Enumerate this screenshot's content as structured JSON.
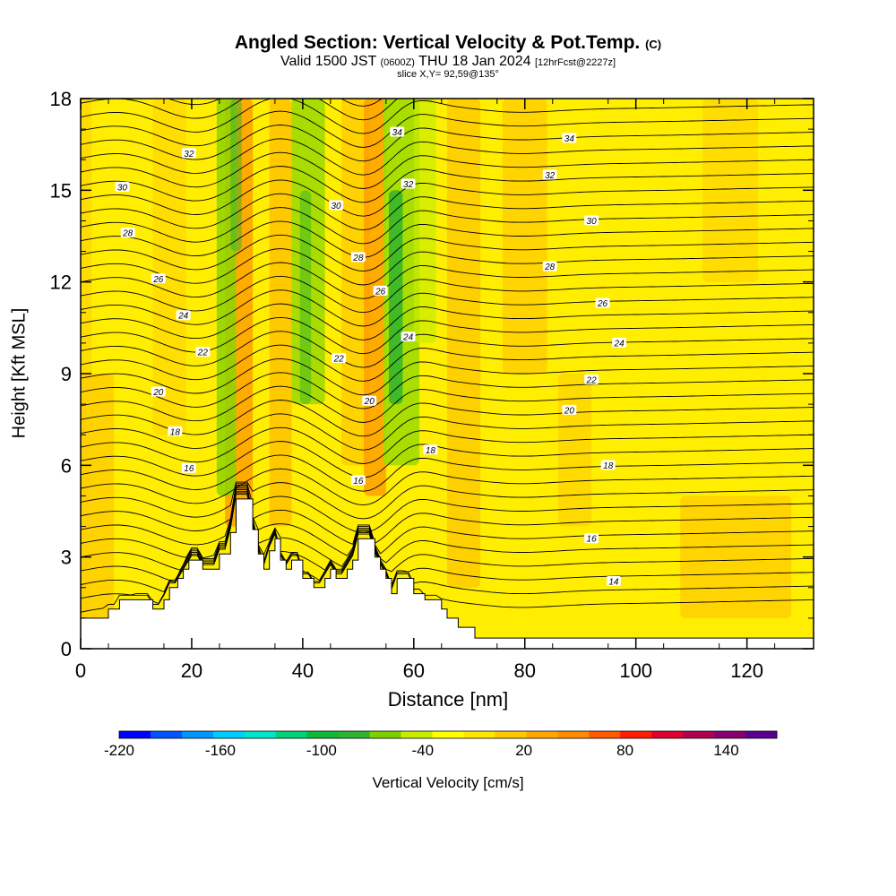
{
  "header": {
    "title_main": "Angled Section: Vertical Velocity & Pot.Temp.",
    "title_tag": "(C)",
    "subtitle_valid": "Valid 1500 JST",
    "subtitle_utc": "(0600Z)",
    "subtitle_date": "THU 18 Jan 2024",
    "subtitle_fcst": "[12hrFcst@2227z]",
    "slice": "slice X,Y= 92,59@135°"
  },
  "chart_data": {
    "type": "heatmap",
    "xlabel": "Distance [nm]",
    "ylabel": "Height [Kft MSL]",
    "xlim": [
      0,
      132
    ],
    "ylim": [
      0,
      18
    ],
    "x_ticks": [
      "0",
      "20",
      "40",
      "60",
      "80",
      "100",
      "120"
    ],
    "y_ticks": [
      "0",
      "3",
      "6",
      "9",
      "12",
      "15",
      "18"
    ],
    "colorbar": {
      "label": "Vertical Velocity [cm/s]",
      "range": [
        -220,
        170
      ],
      "step": 10,
      "tick_labels": [
        "-220",
        "-160",
        "-100",
        "-40",
        "20",
        "80",
        "140"
      ],
      "colors": [
        "#0000ff",
        "#0055ff",
        "#0096ff",
        "#00ccff",
        "#00e6c8",
        "#00d27a",
        "#10b83a",
        "#2eb42e",
        "#7ed000",
        "#c8ec00",
        "#ffff00",
        "#ffe600",
        "#ffc800",
        "#ffa800",
        "#ff8c00",
        "#ff5a00",
        "#ff1e00",
        "#e00030",
        "#b00050",
        "#880070",
        "#5a0090"
      ]
    },
    "contour_field": "Potential Temperature",
    "contour_levels": [
      14,
      16,
      18,
      20,
      22,
      24,
      26,
      28,
      30,
      32,
      34
    ],
    "contour_labels": [
      {
        "text": "34",
        "x": 57,
        "y": 16.9
      },
      {
        "text": "34",
        "x": 88,
        "y": 16.7
      },
      {
        "text": "32",
        "x": 19.5,
        "y": 16.2
      },
      {
        "text": "32",
        "x": 59,
        "y": 15.2
      },
      {
        "text": "32",
        "x": 84.5,
        "y": 15.5
      },
      {
        "text": "30",
        "x": 7.5,
        "y": 15.1
      },
      {
        "text": "30",
        "x": 46,
        "y": 14.5
      },
      {
        "text": "30",
        "x": 92,
        "y": 14.0
      },
      {
        "text": "28",
        "x": 8.5,
        "y": 13.6
      },
      {
        "text": "28",
        "x": 50,
        "y": 12.8
      },
      {
        "text": "28",
        "x": 84.5,
        "y": 12.5
      },
      {
        "text": "26",
        "x": 14,
        "y": 12.1
      },
      {
        "text": "26",
        "x": 54,
        "y": 11.7
      },
      {
        "text": "26",
        "x": 94,
        "y": 11.3
      },
      {
        "text": "24",
        "x": 18.5,
        "y": 10.9
      },
      {
        "text": "24",
        "x": 59,
        "y": 10.2
      },
      {
        "text": "24",
        "x": 97,
        "y": 10.0
      },
      {
        "text": "22",
        "x": 22,
        "y": 9.7
      },
      {
        "text": "22",
        "x": 46.5,
        "y": 9.5
      },
      {
        "text": "22",
        "x": 92,
        "y": 8.8
      },
      {
        "text": "20",
        "x": 14,
        "y": 8.4
      },
      {
        "text": "20",
        "x": 52,
        "y": 8.1
      },
      {
        "text": "20",
        "x": 88,
        "y": 7.8
      },
      {
        "text": "18",
        "x": 17,
        "y": 7.1
      },
      {
        "text": "18",
        "x": 63,
        "y": 6.5
      },
      {
        "text": "18",
        "x": 95,
        "y": 6.0
      },
      {
        "text": "16",
        "x": 19.5,
        "y": 5.9
      },
      {
        "text": "16",
        "x": 50,
        "y": 5.5
      },
      {
        "text": "16",
        "x": 92,
        "y": 3.6
      },
      {
        "text": "14",
        "x": 96,
        "y": 2.2
      }
    ],
    "terrain_profile": [
      [
        0,
        1.0
      ],
      [
        5,
        1.0
      ],
      [
        5,
        1.3
      ],
      [
        7,
        1.3
      ],
      [
        7,
        1.6
      ],
      [
        13,
        1.6
      ],
      [
        13,
        1.3
      ],
      [
        15,
        1.3
      ],
      [
        15,
        1.6
      ],
      [
        16,
        1.6
      ],
      [
        16,
        2.0
      ],
      [
        17.5,
        2.0
      ],
      [
        17.5,
        2.3
      ],
      [
        18.5,
        2.3
      ],
      [
        18.5,
        2.6
      ],
      [
        19.5,
        2.6
      ],
      [
        19.5,
        2.9
      ],
      [
        22,
        2.9
      ],
      [
        22,
        2.6
      ],
      [
        25,
        2.6
      ],
      [
        25,
        3.1
      ],
      [
        27,
        3.1
      ],
      [
        27,
        3.8
      ],
      [
        28,
        3.8
      ],
      [
        28,
        4.9
      ],
      [
        31,
        4.9
      ],
      [
        31,
        3.9
      ],
      [
        32,
        3.9
      ],
      [
        32,
        3.1
      ],
      [
        33,
        3.1
      ],
      [
        33,
        2.6
      ],
      [
        34,
        2.6
      ],
      [
        34,
        3.2
      ],
      [
        35,
        3.2
      ],
      [
        35,
        3.6
      ],
      [
        36,
        3.6
      ],
      [
        36,
        2.9
      ],
      [
        37,
        2.9
      ],
      [
        37,
        2.6
      ],
      [
        38,
        2.6
      ],
      [
        38,
        2.9
      ],
      [
        40,
        2.9
      ],
      [
        40,
        2.3
      ],
      [
        42,
        2.3
      ],
      [
        42,
        2.0
      ],
      [
        44,
        2.0
      ],
      [
        44,
        2.3
      ],
      [
        45,
        2.3
      ],
      [
        45,
        2.6
      ],
      [
        46,
        2.6
      ],
      [
        46,
        2.3
      ],
      [
        48,
        2.3
      ],
      [
        48,
        2.6
      ],
      [
        49,
        2.6
      ],
      [
        49,
        2.9
      ],
      [
        50,
        2.9
      ],
      [
        50,
        3.6
      ],
      [
        53,
        3.6
      ],
      [
        53,
        3.0
      ],
      [
        54,
        3.0
      ],
      [
        54,
        2.6
      ],
      [
        55,
        2.6
      ],
      [
        55,
        2.3
      ],
      [
        56,
        2.3
      ],
      [
        56,
        1.8
      ],
      [
        57,
        1.8
      ],
      [
        57,
        2.3
      ],
      [
        60,
        2.3
      ],
      [
        60,
        1.8
      ],
      [
        62,
        1.8
      ],
      [
        62,
        1.6
      ],
      [
        65,
        1.6
      ],
      [
        65,
        1.3
      ],
      [
        66,
        1.3
      ],
      [
        66,
        1.0
      ],
      [
        68,
        1.0
      ],
      [
        68,
        0.7
      ],
      [
        71,
        0.7
      ],
      [
        71,
        0.35
      ],
      [
        132,
        0.35
      ]
    ]
  }
}
